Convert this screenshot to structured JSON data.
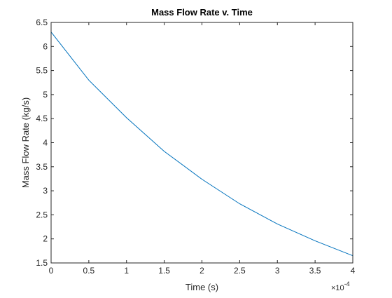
{
  "chart_data": {
    "type": "line",
    "title": "Mass Flow Rate v. Time",
    "xlabel": "Time (s)",
    "ylabel": "Mass Flow Rate (kg/s)",
    "x_exponent_base": "×10",
    "x_exponent_power": "-4",
    "xlim": [
      0,
      0.0004
    ],
    "ylim": [
      1.5,
      6.5
    ],
    "x_ticks": [
      0,
      0.5,
      1,
      1.5,
      2,
      2.5,
      3,
      3.5,
      4
    ],
    "x_tick_labels": [
      "0",
      "0.5",
      "1",
      "1.5",
      "2",
      "2.5",
      "3",
      "3.5",
      "4"
    ],
    "y_ticks": [
      1.5,
      2,
      2.5,
      3,
      3.5,
      4,
      4.5,
      5,
      5.5,
      6,
      6.5
    ],
    "y_tick_labels": [
      "1.5",
      "2",
      "2.5",
      "3",
      "3.5",
      "4",
      "4.5",
      "5",
      "5.5",
      "6",
      "6.5"
    ],
    "grid": false,
    "colors": {
      "line": "#0072BD",
      "axes": "#262626"
    },
    "series": [
      {
        "x": [
          0,
          5e-05,
          0.0001,
          0.00015,
          0.0002,
          0.00025,
          0.0003,
          0.00035,
          0.0004
        ],
        "y": [
          6.3,
          5.3,
          4.52,
          3.82,
          3.24,
          2.73,
          2.31,
          1.96,
          1.65
        ]
      }
    ]
  }
}
